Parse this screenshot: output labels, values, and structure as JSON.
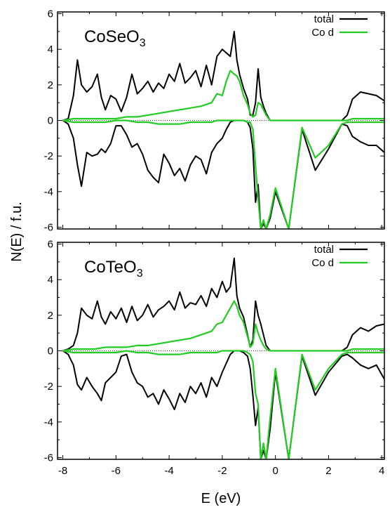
{
  "chart_data": [
    {
      "type": "line",
      "title": "CoSeO",
      "title_subscript": "3",
      "xlim": [
        -8.2,
        4.1
      ],
      "ylim": [
        -6.1,
        6.1
      ],
      "xticks": [
        -8,
        -6,
        -4,
        -2,
        0,
        2,
        4
      ],
      "yticks": [
        -6,
        -4,
        -2,
        0,
        2,
        4,
        6
      ],
      "legend_position": "top-right",
      "zero_line": "dotted",
      "series": [
        {
          "name": "total",
          "color": "#000000",
          "x": [
            -8.0,
            -7.8,
            -7.6,
            -7.45,
            -7.3,
            -7.1,
            -6.9,
            -6.7,
            -6.55,
            -6.4,
            -6.2,
            -6.0,
            -5.8,
            -5.6,
            -5.4,
            -5.2,
            -5.0,
            -4.8,
            -4.6,
            -4.4,
            -4.2,
            -4.0,
            -3.8,
            -3.6,
            -3.4,
            -3.2,
            -3.0,
            -2.8,
            -2.6,
            -2.4,
            -2.2,
            -2.0,
            -1.85,
            -1.7,
            -1.55,
            -1.45,
            -1.35,
            -1.2,
            -1.05,
            -0.95,
            -0.85,
            -0.75,
            -0.65,
            -0.55,
            -0.45,
            -0.35,
            -0.2,
            0.0,
            0.5,
            1.0,
            1.5,
            2.0,
            2.5,
            2.7,
            2.9,
            3.2,
            3.5,
            3.8,
            4.1
          ],
          "y_up": [
            0.0,
            0.1,
            1.4,
            3.4,
            2.0,
            1.6,
            1.9,
            2.6,
            1.3,
            0.6,
            1.4,
            1.2,
            0.5,
            1.3,
            2.6,
            1.5,
            1.8,
            2.2,
            1.6,
            2.1,
            1.8,
            2.6,
            2.2,
            3.2,
            2.1,
            2.4,
            2.8,
            1.9,
            3.1,
            2.0,
            3.6,
            4.0,
            3.8,
            3.6,
            5.0,
            3.4,
            2.6,
            1.8,
            1.2,
            0.3,
            0.3,
            1.0,
            2.9,
            1.3,
            0.8,
            0.4,
            0.0,
            0.0,
            0.0,
            0.0,
            0.0,
            0.0,
            0.0,
            0.3,
            1.2,
            1.6,
            1.5,
            1.4,
            1.1
          ],
          "y_down": [
            0.0,
            -0.2,
            -1.0,
            -2.5,
            -3.7,
            -1.8,
            -2.0,
            -1.9,
            -1.6,
            -1.8,
            -1.3,
            -0.3,
            -0.3,
            -0.8,
            -1.5,
            -1.3,
            -1.9,
            -2.8,
            -3.2,
            -3.5,
            -1.9,
            -2.4,
            -3.1,
            -2.7,
            -3.4,
            -2.5,
            -2.0,
            -2.2,
            -3.0,
            -1.8,
            -1.3,
            -1.0,
            -0.5,
            -0.1,
            0.0,
            0.0,
            0.0,
            0.0,
            -0.1,
            -0.4,
            -1.6,
            -4.6,
            -3.6,
            -6.1,
            -5.8,
            -6.1,
            -5.5,
            -4.0,
            -6.1,
            -0.5,
            -2.8,
            -1.6,
            -0.2,
            -0.3,
            -0.9,
            -1.2,
            -1.4,
            -1.4,
            -1.8
          ]
        },
        {
          "name": "Co d",
          "color": "#22cc22",
          "x": [
            -8.0,
            -7.6,
            -7.2,
            -6.8,
            -6.4,
            -6.0,
            -5.6,
            -5.2,
            -4.8,
            -4.4,
            -4.0,
            -3.6,
            -3.2,
            -2.8,
            -2.4,
            -2.2,
            -2.0,
            -1.85,
            -1.7,
            -1.55,
            -1.45,
            -1.35,
            -1.2,
            -1.05,
            -0.95,
            -0.85,
            -0.75,
            -0.65,
            -0.55,
            -0.45,
            -0.35,
            -0.2,
            0.0,
            0.5,
            1.0,
            1.5,
            2.0,
            2.5,
            2.7,
            2.9,
            3.2,
            3.5,
            3.8,
            4.1
          ],
          "y_up": [
            0.0,
            0.1,
            0.1,
            0.1,
            0.1,
            0.1,
            0.2,
            0.2,
            0.3,
            0.4,
            0.5,
            0.6,
            0.7,
            0.8,
            1.0,
            1.5,
            1.4,
            2.2,
            2.8,
            2.6,
            2.5,
            2.2,
            1.4,
            0.9,
            0.4,
            0.2,
            0.3,
            1.0,
            0.9,
            0.6,
            0.3,
            0.0,
            0.0,
            0.0,
            0.0,
            0.0,
            0.0,
            0.0,
            0.0,
            0.1,
            0.1,
            0.1,
            0.1,
            0.1
          ],
          "y_down": [
            0.0,
            -0.1,
            -0.1,
            -0.1,
            -0.1,
            0.0,
            0.0,
            -0.1,
            -0.1,
            -0.2,
            -0.2,
            -0.2,
            -0.1,
            -0.1,
            -0.1,
            0.0,
            0.0,
            0.0,
            0.0,
            0.0,
            0.0,
            0.0,
            0.0,
            -0.1,
            -0.1,
            -0.5,
            -2.6,
            -4.4,
            -6.1,
            -5.6,
            -6.1,
            -5.3,
            -3.8,
            -6.1,
            -0.4,
            -2.1,
            -1.4,
            -0.2,
            -0.1,
            -0.1,
            -0.1,
            -0.1,
            -0.1,
            -0.1
          ]
        }
      ]
    },
    {
      "type": "line",
      "title": "CoTeO",
      "title_subscript": "3",
      "xlim": [
        -8.2,
        4.1
      ],
      "ylim": [
        -6.1,
        6.1
      ],
      "xticks": [
        -8,
        -6,
        -4,
        -2,
        0,
        2,
        4
      ],
      "yticks": [
        -6,
        -4,
        -2,
        0,
        2,
        4,
        6
      ],
      "legend_position": "top-right",
      "zero_line": "dotted",
      "series": [
        {
          "name": "total",
          "color": "#000000",
          "x": [
            -8.0,
            -7.8,
            -7.6,
            -7.45,
            -7.3,
            -7.1,
            -6.9,
            -6.7,
            -6.55,
            -6.4,
            -6.2,
            -6.0,
            -5.8,
            -5.6,
            -5.4,
            -5.2,
            -5.0,
            -4.8,
            -4.6,
            -4.4,
            -4.2,
            -4.0,
            -3.8,
            -3.6,
            -3.4,
            -3.2,
            -3.0,
            -2.8,
            -2.6,
            -2.4,
            -2.2,
            -2.0,
            -1.85,
            -1.7,
            -1.55,
            -1.45,
            -1.35,
            -1.2,
            -1.05,
            -0.95,
            -0.85,
            -0.75,
            -0.65,
            -0.55,
            -0.45,
            -0.35,
            -0.2,
            0.0,
            0.5,
            1.0,
            1.5,
            2.0,
            2.5,
            2.7,
            2.9,
            3.2,
            3.5,
            3.8,
            4.1
          ],
          "y_up": [
            0.0,
            0.1,
            0.3,
            1.0,
            2.4,
            2.0,
            1.8,
            2.8,
            1.9,
            1.5,
            2.2,
            1.8,
            2.4,
            1.6,
            2.5,
            1.7,
            2.0,
            2.6,
            1.9,
            2.3,
            2.5,
            2.8,
            2.3,
            3.3,
            2.4,
            2.7,
            2.6,
            3.1,
            2.5,
            3.5,
            3.0,
            3.9,
            3.3,
            3.6,
            5.2,
            3.1,
            2.4,
            1.9,
            0.9,
            0.2,
            0.6,
            2.8,
            2.0,
            1.5,
            0.9,
            0.3,
            0.0,
            0.0,
            0.0,
            0.0,
            0.0,
            0.0,
            0.0,
            0.2,
            0.9,
            1.3,
            1.1,
            1.4,
            1.5
          ],
          "y_down": [
            0.0,
            -0.2,
            -0.8,
            -1.9,
            -2.2,
            -1.5,
            -2.0,
            -2.4,
            -2.8,
            -1.8,
            -1.5,
            -1.2,
            -0.3,
            -0.2,
            -1.2,
            -1.8,
            -2.0,
            -2.6,
            -2.4,
            -3.0,
            -2.2,
            -2.7,
            -3.3,
            -2.4,
            -2.9,
            -2.0,
            -2.4,
            -1.8,
            -2.6,
            -1.5,
            -2.0,
            -1.2,
            -0.7,
            -0.2,
            0.0,
            0.0,
            0.0,
            -0.1,
            -0.3,
            -1.0,
            -2.5,
            -4.2,
            -3.2,
            -6.1,
            -5.6,
            -6.1,
            -4.4,
            -1.2,
            -6.1,
            -0.3,
            -2.5,
            -1.2,
            -0.3,
            -0.2,
            -0.4,
            -0.8,
            -1.0,
            -0.8,
            -1.6
          ]
        },
        {
          "name": "Co d",
          "color": "#22cc22",
          "x": [
            -8.0,
            -7.6,
            -7.2,
            -6.8,
            -6.4,
            -6.0,
            -5.6,
            -5.2,
            -4.8,
            -4.4,
            -4.0,
            -3.6,
            -3.2,
            -2.8,
            -2.4,
            -2.2,
            -2.0,
            -1.85,
            -1.7,
            -1.55,
            -1.45,
            -1.35,
            -1.2,
            -1.05,
            -0.95,
            -0.85,
            -0.75,
            -0.65,
            -0.55,
            -0.45,
            -0.35,
            -0.2,
            0.0,
            0.5,
            1.0,
            1.5,
            2.0,
            2.5,
            2.7,
            2.9,
            3.2,
            3.5,
            3.8,
            4.1
          ],
          "y_up": [
            0.0,
            0.1,
            0.1,
            0.1,
            0.2,
            0.2,
            0.2,
            0.3,
            0.3,
            0.4,
            0.5,
            0.6,
            0.7,
            0.9,
            1.1,
            1.5,
            1.6,
            2.0,
            2.4,
            2.8,
            2.5,
            2.0,
            1.6,
            0.8,
            0.2,
            0.4,
            1.5,
            1.0,
            0.6,
            0.3,
            0.1,
            0.0,
            0.0,
            0.0,
            0.0,
            0.0,
            0.0,
            0.0,
            0.0,
            0.1,
            0.1,
            0.1,
            0.1,
            0.1
          ],
          "y_down": [
            0.0,
            -0.1,
            -0.1,
            -0.1,
            -0.1,
            -0.1,
            0.0,
            -0.1,
            -0.1,
            -0.2,
            -0.2,
            -0.2,
            -0.1,
            -0.1,
            -0.1,
            -0.1,
            0.0,
            0.0,
            0.0,
            0.0,
            0.0,
            0.0,
            0.0,
            -0.1,
            -0.2,
            -0.6,
            -2.4,
            -3.0,
            -6.1,
            -5.2,
            -6.1,
            -3.8,
            -1.0,
            -6.1,
            -0.2,
            -2.2,
            -1.0,
            -0.2,
            -0.1,
            -0.1,
            -0.1,
            -0.1,
            -0.1,
            -0.1
          ]
        }
      ]
    }
  ],
  "axes": {
    "ylabel": "N(E) / f.u.",
    "xlabel": "E (eV)"
  }
}
